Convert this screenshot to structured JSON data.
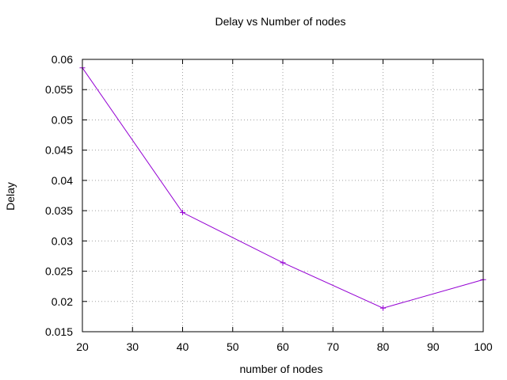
{
  "chart_data": {
    "type": "line",
    "title": "Delay vs Number of nodes",
    "xlabel": "number of nodes",
    "ylabel": "Delay",
    "xlim": [
      20,
      100
    ],
    "ylim": [
      0.015,
      0.06
    ],
    "xticks": [
      20,
      30,
      40,
      50,
      60,
      70,
      80,
      90,
      100
    ],
    "yticks": [
      0.015,
      0.02,
      0.025,
      0.03,
      0.035,
      0.04,
      0.045,
      0.05,
      0.055,
      0.06
    ],
    "xtick_labels": [
      "20",
      "30",
      "40",
      "50",
      "60",
      "70",
      "80",
      "90",
      "100"
    ],
    "ytick_labels": [
      "0.015",
      "0.02",
      "0.025",
      "0.03",
      "0.035",
      "0.04",
      "0.045",
      "0.05",
      "0.055",
      "0.06"
    ],
    "grid": true,
    "series": [
      {
        "color": "#9400d3",
        "marker": "plus",
        "x": [
          20,
          40,
          60,
          80,
          100
        ],
        "y": [
          0.0586,
          0.0347,
          0.0264,
          0.0189,
          0.0236
        ]
      }
    ]
  }
}
